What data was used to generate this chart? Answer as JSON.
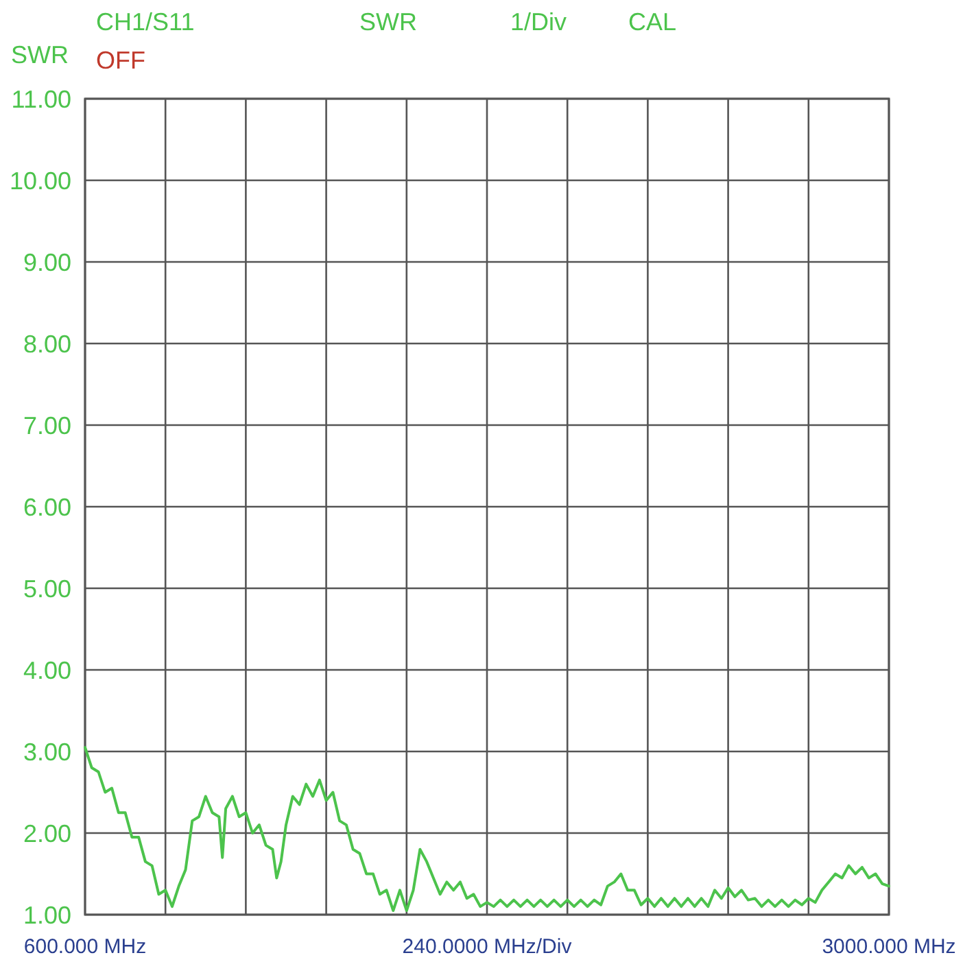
{
  "chart_data": {
    "type": "line",
    "ylabel": "SWR",
    "annotations": [
      "CH1/S11",
      "OFF",
      "SWR",
      "1/Div",
      "CAL"
    ],
    "xlabel": "240.0000 MHz/Div",
    "xlim": [
      600,
      3000
    ],
    "xticks": [
      {
        "value": 600,
        "label": "600.000 MHz"
      },
      {
        "value": 840,
        "label": null
      },
      {
        "value": 1080,
        "label": null
      },
      {
        "value": 1320,
        "label": null
      },
      {
        "value": 1560,
        "label": null
      },
      {
        "value": 1800,
        "label": null
      },
      {
        "value": 2040,
        "label": null
      },
      {
        "value": 2280,
        "label": null
      },
      {
        "value": 2520,
        "label": null
      },
      {
        "value": 2760,
        "label": null
      },
      {
        "value": 3000,
        "label": "3000.000 MHz"
      }
    ],
    "ylim": [
      1,
      11
    ],
    "yticks": [
      {
        "value": 1,
        "label": "1.00"
      },
      {
        "value": 2,
        "label": "2.00"
      },
      {
        "value": 3,
        "label": "3.00"
      },
      {
        "value": 4,
        "label": "4.00"
      },
      {
        "value": 5,
        "label": "5.00"
      },
      {
        "value": 6,
        "label": "6.00"
      },
      {
        "value": 7,
        "label": "7.00"
      },
      {
        "value": 8,
        "label": "8.00"
      },
      {
        "value": 9,
        "label": "9.00"
      },
      {
        "value": 10,
        "label": "10.00"
      },
      {
        "value": 11,
        "label": "11.00"
      }
    ],
    "grid": true,
    "series": [
      {
        "color": "#4cc34c",
        "x": [
          600,
          620,
          640,
          660,
          680,
          700,
          720,
          740,
          760,
          780,
          800,
          820,
          840,
          860,
          880,
          900,
          920,
          940,
          960,
          980,
          1000,
          1010,
          1020,
          1040,
          1060,
          1080,
          1100,
          1120,
          1140,
          1160,
          1172,
          1185,
          1200,
          1220,
          1240,
          1260,
          1280,
          1300,
          1320,
          1340,
          1360,
          1380,
          1400,
          1420,
          1440,
          1460,
          1480,
          1500,
          1520,
          1540,
          1560,
          1580,
          1600,
          1620,
          1640,
          1660,
          1680,
          1700,
          1720,
          1740,
          1760,
          1780,
          1800,
          1820,
          1840,
          1860,
          1880,
          1900,
          1920,
          1940,
          1960,
          1980,
          2000,
          2020,
          2040,
          2060,
          2080,
          2100,
          2120,
          2140,
          2160,
          2180,
          2200,
          2220,
          2240,
          2260,
          2280,
          2300,
          2320,
          2340,
          2360,
          2380,
          2400,
          2420,
          2440,
          2460,
          2480,
          2500,
          2520,
          2540,
          2560,
          2580,
          2600,
          2620,
          2640,
          2660,
          2680,
          2700,
          2720,
          2740,
          2760,
          2780,
          2800,
          2820,
          2840,
          2860,
          2880,
          2900,
          2920,
          2940,
          2960,
          2980,
          3000
        ],
        "values": [
          3.05,
          2.8,
          2.75,
          2.5,
          2.55,
          2.25,
          2.25,
          1.95,
          1.95,
          1.65,
          1.6,
          1.25,
          1.3,
          1.1,
          1.35,
          1.55,
          2.15,
          2.2,
          2.45,
          2.25,
          2.2,
          1.7,
          2.3,
          2.45,
          2.2,
          2.25,
          2.0,
          2.1,
          1.85,
          1.8,
          1.45,
          1.65,
          2.1,
          2.45,
          2.35,
          2.6,
          2.45,
          2.65,
          2.4,
          2.5,
          2.15,
          2.1,
          1.8,
          1.75,
          1.5,
          1.5,
          1.25,
          1.3,
          1.05,
          1.3,
          1.05,
          1.3,
          1.8,
          1.65,
          1.45,
          1.25,
          1.4,
          1.3,
          1.4,
          1.2,
          1.25,
          1.1,
          1.15,
          1.1,
          1.18,
          1.1,
          1.18,
          1.1,
          1.18,
          1.1,
          1.18,
          1.1,
          1.18,
          1.1,
          1.18,
          1.1,
          1.18,
          1.1,
          1.18,
          1.12,
          1.35,
          1.4,
          1.5,
          1.3,
          1.3,
          1.12,
          1.2,
          1.1,
          1.2,
          1.1,
          1.2,
          1.1,
          1.2,
          1.1,
          1.2,
          1.1,
          1.3,
          1.2,
          1.33,
          1.22,
          1.3,
          1.18,
          1.2,
          1.1,
          1.18,
          1.1,
          1.18,
          1.1,
          1.18,
          1.12,
          1.2,
          1.15,
          1.3,
          1.4,
          1.5,
          1.45,
          1.6,
          1.5,
          1.58,
          1.45,
          1.5,
          1.38,
          1.35
        ]
      }
    ]
  }
}
